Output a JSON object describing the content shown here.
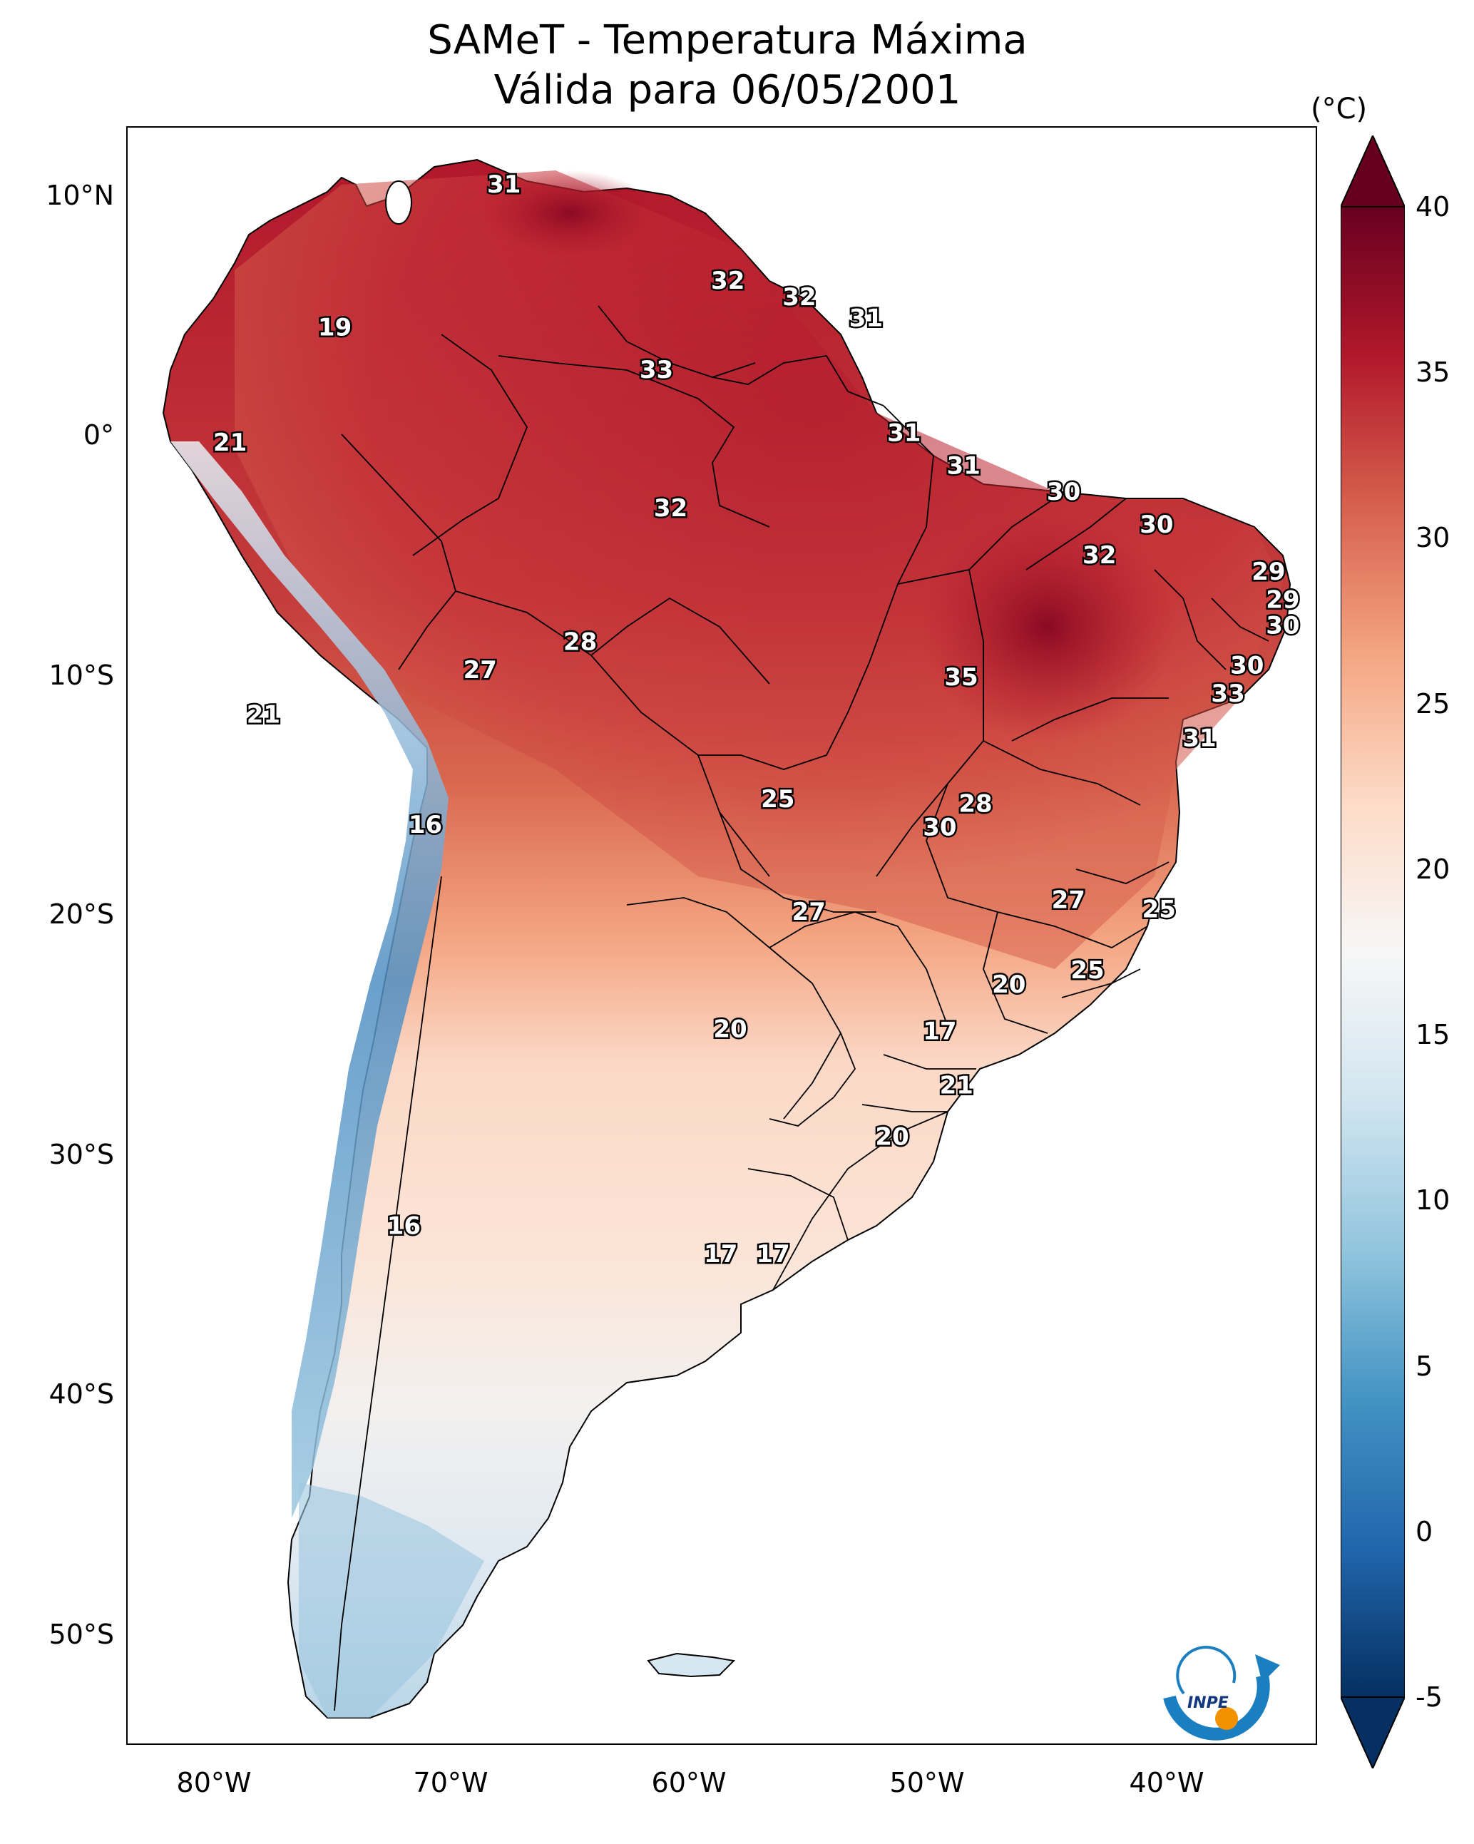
{
  "title": {
    "line1": "SAMeT - Temperatura Máxima",
    "line2": "Válida para 06/05/2001"
  },
  "colorbar": {
    "unit": "(°C)",
    "min": -5,
    "max": 40,
    "ticks": [
      "40",
      "35",
      "30",
      "25",
      "20",
      "15",
      "10",
      "5",
      "0",
      "-5"
    ],
    "colors": [
      "#053061",
      "#2166ac",
      "#4393c3",
      "#92c5de",
      "#d1e5f0",
      "#f7f7f7",
      "#fddbc7",
      "#f4a582",
      "#d6604d",
      "#b2182b",
      "#67001f"
    ]
  },
  "axes": {
    "latitude_labels": [
      "10°N",
      "0°",
      "10°S",
      "20°S",
      "30°S",
      "40°S",
      "50°S"
    ],
    "longitude_labels": [
      "80°W",
      "70°W",
      "60°W",
      "50°W",
      "40°W"
    ],
    "lon_range": [
      -83,
      -33
    ],
    "lat_range": [
      13,
      -56
    ]
  },
  "map_labels": [
    {
      "text": "31",
      "lon": -67.2,
      "lat": 10.6
    },
    {
      "text": "32",
      "lon": -57.8,
      "lat": 6.5
    },
    {
      "text": "32",
      "lon": -54.8,
      "lat": 5.8
    },
    {
      "text": "31",
      "lon": -52.0,
      "lat": 4.9
    },
    {
      "text": "19",
      "lon": -74.3,
      "lat": 4.5
    },
    {
      "text": "33",
      "lon": -60.8,
      "lat": 2.7
    },
    {
      "text": "31",
      "lon": -50.4,
      "lat": 0.0
    },
    {
      "text": "21",
      "lon": -78.7,
      "lat": -0.4
    },
    {
      "text": "31",
      "lon": -47.9,
      "lat": -1.4
    },
    {
      "text": "30",
      "lon": -43.7,
      "lat": -2.5
    },
    {
      "text": "32",
      "lon": -60.2,
      "lat": -3.2
    },
    {
      "text": "30",
      "lon": -39.8,
      "lat": -3.9
    },
    {
      "text": "32",
      "lon": -42.2,
      "lat": -5.2
    },
    {
      "text": "29",
      "lon": -35.1,
      "lat": -5.9
    },
    {
      "text": "29",
      "lon": -34.5,
      "lat": -7.1
    },
    {
      "text": "30",
      "lon": -34.5,
      "lat": -8.2
    },
    {
      "text": "28",
      "lon": -64.0,
      "lat": -8.9
    },
    {
      "text": "27",
      "lon": -68.2,
      "lat": -10.1
    },
    {
      "text": "30",
      "lon": -36.0,
      "lat": -9.9
    },
    {
      "text": "35",
      "lon": -48.0,
      "lat": -10.4
    },
    {
      "text": "33",
      "lon": -36.8,
      "lat": -11.1
    },
    {
      "text": "21",
      "lon": -77.3,
      "lat": -12.0
    },
    {
      "text": "31",
      "lon": -38.0,
      "lat": -13.0
    },
    {
      "text": "28",
      "lon": -47.4,
      "lat": -15.8
    },
    {
      "text": "25",
      "lon": -55.7,
      "lat": -15.6
    },
    {
      "text": "16",
      "lon": -70.5,
      "lat": -16.7
    },
    {
      "text": "30",
      "lon": -48.9,
      "lat": -16.8
    },
    {
      "text": "27",
      "lon": -43.5,
      "lat": -19.9
    },
    {
      "text": "27",
      "lon": -54.4,
      "lat": -20.4
    },
    {
      "text": "25",
      "lon": -39.7,
      "lat": -20.3
    },
    {
      "text": "25",
      "lon": -42.7,
      "lat": -22.9
    },
    {
      "text": "20",
      "lon": -46.0,
      "lat": -23.5
    },
    {
      "text": "20",
      "lon": -57.7,
      "lat": -25.4
    },
    {
      "text": "17",
      "lon": -48.9,
      "lat": -25.5
    },
    {
      "text": "21",
      "lon": -48.2,
      "lat": -27.8
    },
    {
      "text": "20",
      "lon": -50.9,
      "lat": -30.0
    },
    {
      "text": "16",
      "lon": -71.4,
      "lat": -33.8
    },
    {
      "text": "17",
      "lon": -58.1,
      "lat": -35.0
    },
    {
      "text": "17",
      "lon": -55.9,
      "lat": -35.0
    }
  ]
}
